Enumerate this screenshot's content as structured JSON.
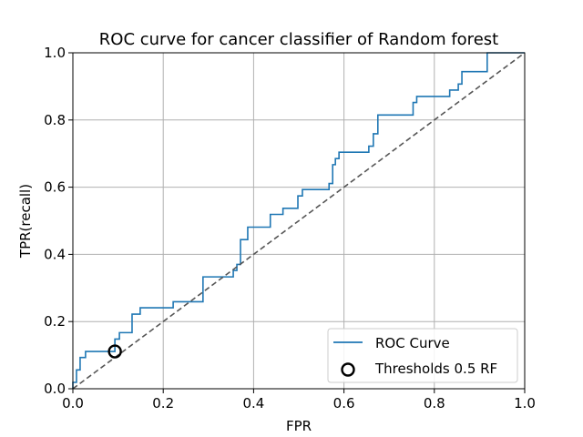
{
  "chart_data": {
    "type": "line",
    "title": "ROC curve for cancer classifier of Random forest",
    "xlabel": "FPR",
    "ylabel": "TPR(recall)",
    "xlim": [
      0.0,
      1.0
    ],
    "ylim": [
      0.0,
      1.0
    ],
    "x_ticks": [
      "0.0",
      "0.2",
      "0.4",
      "0.6",
      "0.8",
      "1.0"
    ],
    "y_ticks": [
      "0.0",
      "0.2",
      "0.4",
      "0.6",
      "0.8",
      "1.0"
    ],
    "grid": true,
    "legend_position": "lower-right",
    "series": [
      {
        "name": "ROC Curve",
        "color": "#1f77b4",
        "style": "step",
        "points": [
          [
            0.0,
            0.0
          ],
          [
            0.0,
            0.019
          ],
          [
            0.008,
            0.019
          ],
          [
            0.008,
            0.056
          ],
          [
            0.016,
            0.056
          ],
          [
            0.016,
            0.093
          ],
          [
            0.028,
            0.093
          ],
          [
            0.028,
            0.111
          ],
          [
            0.093,
            0.111
          ],
          [
            0.093,
            0.148
          ],
          [
            0.103,
            0.148
          ],
          [
            0.103,
            0.167
          ],
          [
            0.131,
            0.167
          ],
          [
            0.131,
            0.222
          ],
          [
            0.149,
            0.222
          ],
          [
            0.149,
            0.241
          ],
          [
            0.222,
            0.241
          ],
          [
            0.222,
            0.259
          ],
          [
            0.288,
            0.259
          ],
          [
            0.288,
            0.333
          ],
          [
            0.355,
            0.333
          ],
          [
            0.355,
            0.352
          ],
          [
            0.363,
            0.352
          ],
          [
            0.363,
            0.37
          ],
          [
            0.371,
            0.37
          ],
          [
            0.371,
            0.444
          ],
          [
            0.387,
            0.444
          ],
          [
            0.387,
            0.481
          ],
          [
            0.437,
            0.481
          ],
          [
            0.437,
            0.519
          ],
          [
            0.465,
            0.519
          ],
          [
            0.465,
            0.537
          ],
          [
            0.498,
            0.537
          ],
          [
            0.498,
            0.574
          ],
          [
            0.508,
            0.574
          ],
          [
            0.508,
            0.593
          ],
          [
            0.567,
            0.593
          ],
          [
            0.567,
            0.611
          ],
          [
            0.575,
            0.611
          ],
          [
            0.575,
            0.667
          ],
          [
            0.581,
            0.667
          ],
          [
            0.581,
            0.685
          ],
          [
            0.589,
            0.685
          ],
          [
            0.589,
            0.704
          ],
          [
            0.655,
            0.704
          ],
          [
            0.655,
            0.722
          ],
          [
            0.665,
            0.722
          ],
          [
            0.665,
            0.759
          ],
          [
            0.675,
            0.759
          ],
          [
            0.675,
            0.815
          ],
          [
            0.753,
            0.815
          ],
          [
            0.753,
            0.852
          ],
          [
            0.761,
            0.852
          ],
          [
            0.761,
            0.87
          ],
          [
            0.834,
            0.87
          ],
          [
            0.834,
            0.889
          ],
          [
            0.853,
            0.889
          ],
          [
            0.853,
            0.907
          ],
          [
            0.861,
            0.907
          ],
          [
            0.861,
            0.944
          ],
          [
            0.917,
            0.944
          ],
          [
            0.917,
            1.0
          ],
          [
            1.0,
            1.0
          ]
        ]
      },
      {
        "name": "",
        "color": "#555555",
        "style": "dashed",
        "points": [
          [
            0.0,
            0.0
          ],
          [
            1.0,
            1.0
          ]
        ]
      }
    ],
    "markers": [
      {
        "name": "Thresholds 0.5 RF",
        "x": 0.093,
        "y": 0.111,
        "shape": "circle",
        "fill": "none",
        "color": "#000000"
      }
    ],
    "legend": [
      {
        "label": "ROC Curve",
        "kind": "line",
        "color": "#1f77b4"
      },
      {
        "label": "Thresholds 0.5 RF",
        "kind": "circle",
        "color": "#000000"
      }
    ]
  }
}
